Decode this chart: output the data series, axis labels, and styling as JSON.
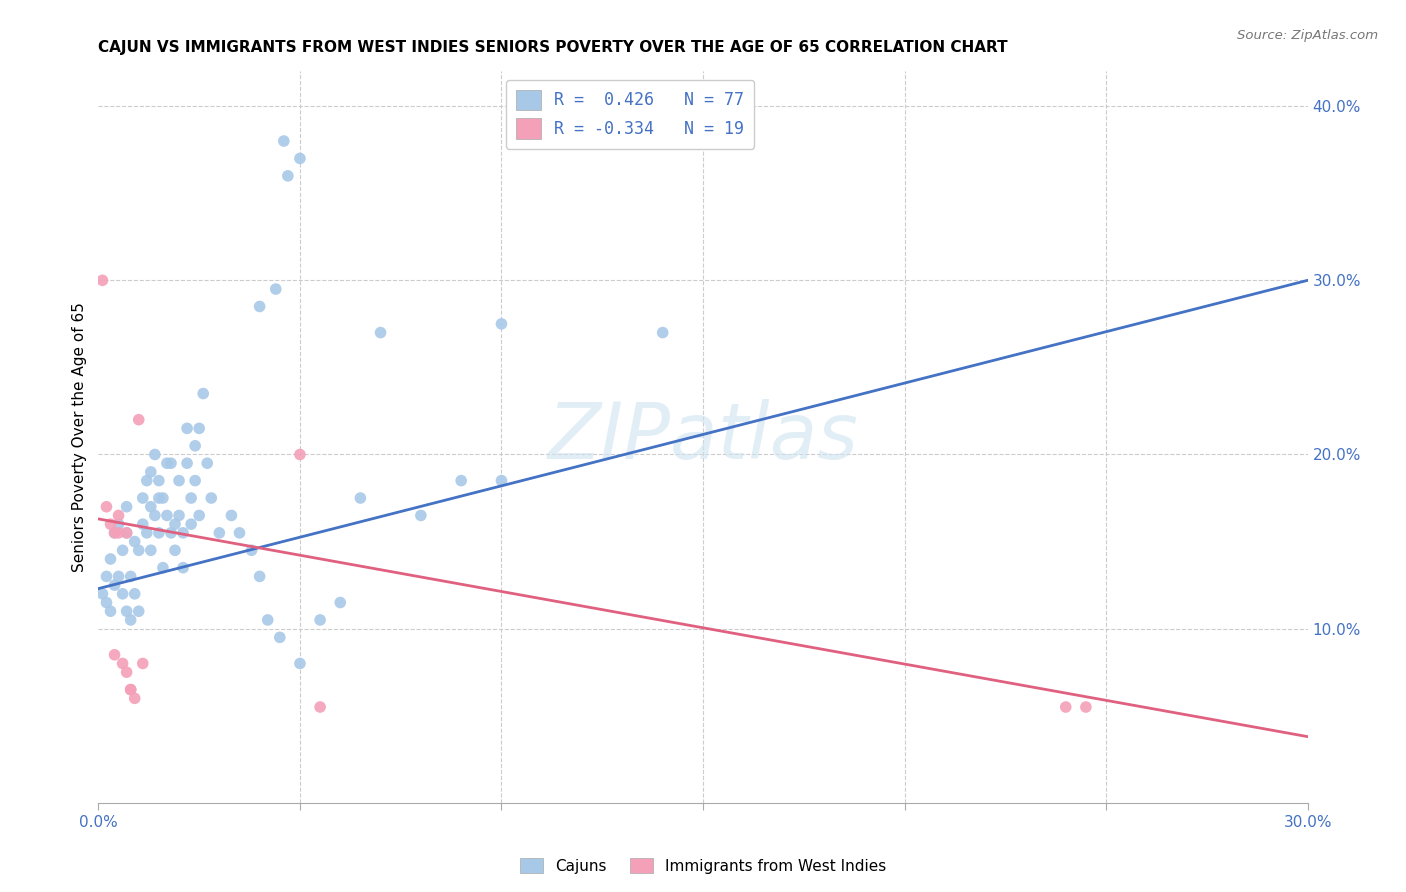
{
  "title": "CAJUN VS IMMIGRANTS FROM WEST INDIES SENIORS POVERTY OVER THE AGE OF 65 CORRELATION CHART",
  "source": "Source: ZipAtlas.com",
  "ylabel": "Seniors Poverty Over the Age of 65",
  "xlim": [
    0.0,
    0.3
  ],
  "ylim": [
    0.0,
    0.42
  ],
  "cajun_color": "#a8c8e8",
  "westindies_color": "#f4a0b8",
  "cajun_line_color": "#4472c4",
  "westindies_line_color": "#e06080",
  "watermark": "ZIPatlas",
  "cajun_legend_label": "Cajuns",
  "westindies_legend_label": "Immigrants from West Indies",
  "cajun_line": [
    [
      0.0,
      0.123
    ],
    [
      0.3,
      0.3
    ]
  ],
  "westindies_line": [
    [
      0.0,
      0.163
    ],
    [
      0.3,
      0.038
    ]
  ],
  "cajun_points": [
    [
      0.001,
      0.12
    ],
    [
      0.002,
      0.13
    ],
    [
      0.002,
      0.115
    ],
    [
      0.003,
      0.11
    ],
    [
      0.003,
      0.14
    ],
    [
      0.004,
      0.155
    ],
    [
      0.004,
      0.125
    ],
    [
      0.005,
      0.16
    ],
    [
      0.005,
      0.13
    ],
    [
      0.006,
      0.145
    ],
    [
      0.006,
      0.12
    ],
    [
      0.007,
      0.17
    ],
    [
      0.007,
      0.11
    ],
    [
      0.007,
      0.155
    ],
    [
      0.008,
      0.105
    ],
    [
      0.008,
      0.13
    ],
    [
      0.009,
      0.15
    ],
    [
      0.009,
      0.12
    ],
    [
      0.01,
      0.145
    ],
    [
      0.01,
      0.11
    ],
    [
      0.011,
      0.175
    ],
    [
      0.011,
      0.16
    ],
    [
      0.012,
      0.185
    ],
    [
      0.012,
      0.155
    ],
    [
      0.013,
      0.19
    ],
    [
      0.013,
      0.17
    ],
    [
      0.013,
      0.145
    ],
    [
      0.014,
      0.2
    ],
    [
      0.014,
      0.165
    ],
    [
      0.015,
      0.155
    ],
    [
      0.015,
      0.185
    ],
    [
      0.015,
      0.175
    ],
    [
      0.016,
      0.175
    ],
    [
      0.016,
      0.135
    ],
    [
      0.017,
      0.165
    ],
    [
      0.017,
      0.195
    ],
    [
      0.018,
      0.195
    ],
    [
      0.018,
      0.155
    ],
    [
      0.019,
      0.145
    ],
    [
      0.019,
      0.16
    ],
    [
      0.02,
      0.185
    ],
    [
      0.02,
      0.165
    ],
    [
      0.021,
      0.135
    ],
    [
      0.021,
      0.155
    ],
    [
      0.022,
      0.215
    ],
    [
      0.022,
      0.195
    ],
    [
      0.023,
      0.175
    ],
    [
      0.023,
      0.16
    ],
    [
      0.024,
      0.205
    ],
    [
      0.024,
      0.185
    ],
    [
      0.025,
      0.215
    ],
    [
      0.025,
      0.165
    ],
    [
      0.026,
      0.235
    ],
    [
      0.027,
      0.195
    ],
    [
      0.028,
      0.175
    ],
    [
      0.03,
      0.155
    ],
    [
      0.033,
      0.165
    ],
    [
      0.035,
      0.155
    ],
    [
      0.038,
      0.145
    ],
    [
      0.04,
      0.13
    ],
    [
      0.042,
      0.105
    ],
    [
      0.045,
      0.095
    ],
    [
      0.05,
      0.08
    ],
    [
      0.055,
      0.105
    ],
    [
      0.06,
      0.115
    ],
    [
      0.065,
      0.175
    ],
    [
      0.07,
      0.27
    ],
    [
      0.08,
      0.165
    ],
    [
      0.09,
      0.185
    ],
    [
      0.1,
      0.185
    ],
    [
      0.1,
      0.275
    ],
    [
      0.14,
      0.27
    ],
    [
      0.04,
      0.285
    ],
    [
      0.044,
      0.295
    ],
    [
      0.046,
      0.38
    ],
    [
      0.047,
      0.36
    ],
    [
      0.05,
      0.37
    ]
  ],
  "westindies_points": [
    [
      0.001,
      0.3
    ],
    [
      0.002,
      0.17
    ],
    [
      0.003,
      0.16
    ],
    [
      0.004,
      0.155
    ],
    [
      0.004,
      0.085
    ],
    [
      0.005,
      0.165
    ],
    [
      0.005,
      0.155
    ],
    [
      0.006,
      0.08
    ],
    [
      0.007,
      0.155
    ],
    [
      0.007,
      0.075
    ],
    [
      0.008,
      0.065
    ],
    [
      0.008,
      0.065
    ],
    [
      0.009,
      0.06
    ],
    [
      0.01,
      0.22
    ],
    [
      0.011,
      0.08
    ],
    [
      0.05,
      0.2
    ],
    [
      0.055,
      0.055
    ],
    [
      0.24,
      0.055
    ],
    [
      0.245,
      0.055
    ]
  ]
}
